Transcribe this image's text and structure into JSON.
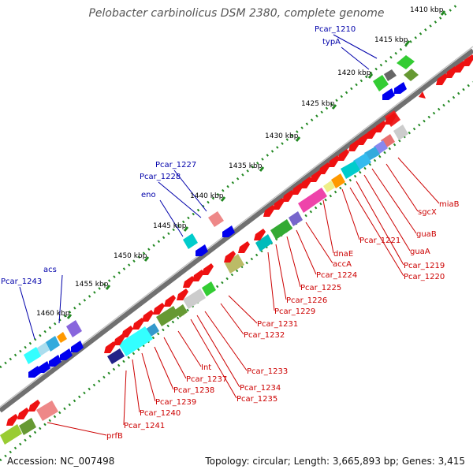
{
  "title": "Pelobacter carbinolicus DSM 2380, complete genome",
  "footer": {
    "accession": "Accession: NC_007498",
    "topology": "Topology: circular; Length: 3,665,893 bp; Genes: 3,415"
  },
  "colors": {
    "backbone": "#707070",
    "tick_dots": "#228822",
    "forward_label": "#0000aa",
    "reverse_label": "#cc0000",
    "forward_gene": "#0000ee",
    "reverse_gene": "#ee1111"
  },
  "scale_labels": [
    "1410 kbp",
    "1415 kbp",
    "1420 kbp",
    "1425 kbp",
    "1430 kbp",
    "1435 kbp",
    "1440 kbp",
    "1445 kbp",
    "1450 kbp",
    "1455 kbp",
    "1460 kbp"
  ],
  "forward_labels": [
    "Pcar_1210",
    "typA",
    "Pcar_1227",
    "Pcar_1228",
    "eno",
    "acs",
    "Pcar_1243"
  ],
  "reverse_labels": [
    "miaB",
    "sgcX",
    "guaB",
    "guaA",
    "Pcar_1219",
    "Pcar_1220",
    "Pcar_1221",
    "dnaE",
    "accA",
    "Pcar_1224",
    "Pcar_1225",
    "Pcar_1226",
    "Pcar_1229",
    "Pcar_1231",
    "Pcar_1232",
    "Pcar_1233",
    "Pcar_1234",
    "Pcar_1235",
    "Int",
    "Pcar_1237",
    "Pcar_1238",
    "Pcar_1239",
    "Pcar_1240",
    "Pcar_1241",
    "prfB"
  ]
}
